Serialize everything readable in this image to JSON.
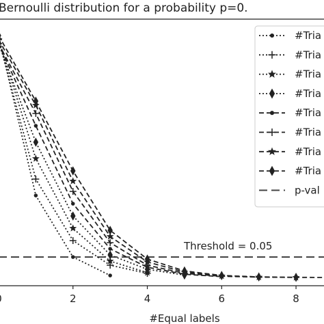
{
  "chart_data": {
    "type": "line",
    "title": "Bernoulli distribution for a probability p=0.",
    "xlabel": "#Equal labels",
    "ylabel": "",
    "xlim": [
      0,
      8.9
    ],
    "ylim": [
      -0.02,
      0.63
    ],
    "x_ticks": [
      0,
      2,
      4,
      6,
      8
    ],
    "x_tick_labels": [
      "0",
      "2",
      "4",
      "6",
      "8"
    ],
    "grid": false,
    "legend_position": "top-right",
    "annotation": "Threshold = 0.05",
    "threshold": 0.05,
    "series": [
      {
        "name": "#Tria",
        "style": "dotted",
        "marker": "circle",
        "x": [
          0,
          1,
          2,
          3
        ],
        "y": [
          0.59,
          0.2,
          0.05,
          0.005
        ]
      },
      {
        "name": "#Tria",
        "style": "dotted",
        "marker": "plus",
        "x": [
          0,
          1,
          2,
          3,
          4
        ],
        "y": [
          0.58,
          0.24,
          0.09,
          0.03,
          0.01
        ]
      },
      {
        "name": "#Tria",
        "style": "dotted",
        "marker": "star",
        "x": [
          0,
          1,
          2,
          3,
          4
        ],
        "y": [
          0.58,
          0.29,
          0.12,
          0.04,
          0.012
        ]
      },
      {
        "name": "#Tria",
        "style": "dotted",
        "marker": "diamond",
        "x": [
          0,
          1,
          2,
          3,
          4,
          5
        ],
        "y": [
          0.57,
          0.33,
          0.15,
          0.055,
          0.02,
          0.006
        ]
      },
      {
        "name": "#Tria",
        "style": "dashed",
        "marker": "circle",
        "x": [
          0,
          1,
          2,
          3,
          4,
          5,
          6
        ],
        "y": [
          0.57,
          0.37,
          0.18,
          0.07,
          0.025,
          0.008,
          0.002
        ]
      },
      {
        "name": "#Tria",
        "style": "dashed",
        "marker": "plus",
        "x": [
          0,
          1,
          2,
          3,
          4,
          5,
          6,
          7
        ],
        "y": [
          0.57,
          0.4,
          0.21,
          0.085,
          0.03,
          0.01,
          0.003,
          0.001
        ]
      },
      {
        "name": "#Tria",
        "style": "dashed",
        "marker": "star",
        "x": [
          0,
          1,
          2,
          3,
          4,
          5,
          6,
          7,
          8
        ],
        "y": [
          0.58,
          0.42,
          0.235,
          0.1,
          0.038,
          0.013,
          0.004,
          0.001,
          0.0003
        ]
      },
      {
        "name": "#Tria",
        "style": "dashed",
        "marker": "diamond",
        "x": [
          0,
          1,
          2,
          3,
          4,
          5,
          6,
          7,
          8,
          9
        ],
        "y": [
          0.59,
          0.43,
          0.26,
          0.115,
          0.045,
          0.016,
          0.005,
          0.0015,
          0.0004,
          0.0001
        ]
      }
    ],
    "threshold_legend": "p-val"
  }
}
